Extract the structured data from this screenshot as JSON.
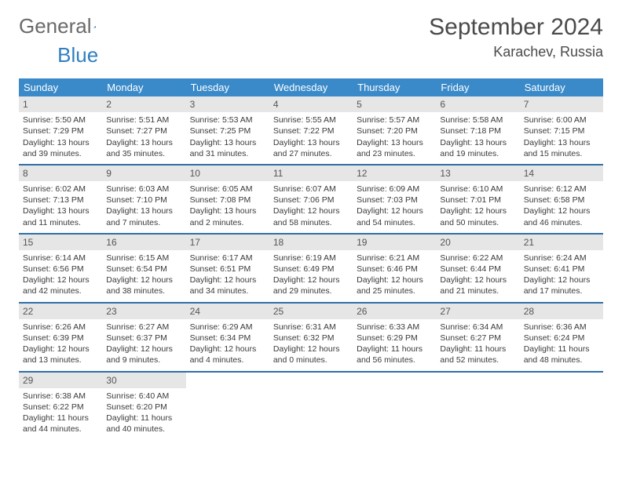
{
  "logo": {
    "text1": "General",
    "text2": "Blue"
  },
  "header": {
    "month_title": "September 2024",
    "location": "Karachev, Russia"
  },
  "colors": {
    "header_bg": "#3a8ac9",
    "header_text": "#ffffff",
    "week_border": "#2f6fa8",
    "daynum_bg": "#e6e6e6",
    "text": "#3a3a3a"
  },
  "weekdays": [
    "Sunday",
    "Monday",
    "Tuesday",
    "Wednesday",
    "Thursday",
    "Friday",
    "Saturday"
  ],
  "weeks": [
    [
      {
        "n": "1",
        "sr": "Sunrise: 5:50 AM",
        "ss": "Sunset: 7:29 PM",
        "d1": "Daylight: 13 hours",
        "d2": "and 39 minutes."
      },
      {
        "n": "2",
        "sr": "Sunrise: 5:51 AM",
        "ss": "Sunset: 7:27 PM",
        "d1": "Daylight: 13 hours",
        "d2": "and 35 minutes."
      },
      {
        "n": "3",
        "sr": "Sunrise: 5:53 AM",
        "ss": "Sunset: 7:25 PM",
        "d1": "Daylight: 13 hours",
        "d2": "and 31 minutes."
      },
      {
        "n": "4",
        "sr": "Sunrise: 5:55 AM",
        "ss": "Sunset: 7:22 PM",
        "d1": "Daylight: 13 hours",
        "d2": "and 27 minutes."
      },
      {
        "n": "5",
        "sr": "Sunrise: 5:57 AM",
        "ss": "Sunset: 7:20 PM",
        "d1": "Daylight: 13 hours",
        "d2": "and 23 minutes."
      },
      {
        "n": "6",
        "sr": "Sunrise: 5:58 AM",
        "ss": "Sunset: 7:18 PM",
        "d1": "Daylight: 13 hours",
        "d2": "and 19 minutes."
      },
      {
        "n": "7",
        "sr": "Sunrise: 6:00 AM",
        "ss": "Sunset: 7:15 PM",
        "d1": "Daylight: 13 hours",
        "d2": "and 15 minutes."
      }
    ],
    [
      {
        "n": "8",
        "sr": "Sunrise: 6:02 AM",
        "ss": "Sunset: 7:13 PM",
        "d1": "Daylight: 13 hours",
        "d2": "and 11 minutes."
      },
      {
        "n": "9",
        "sr": "Sunrise: 6:03 AM",
        "ss": "Sunset: 7:10 PM",
        "d1": "Daylight: 13 hours",
        "d2": "and 7 minutes."
      },
      {
        "n": "10",
        "sr": "Sunrise: 6:05 AM",
        "ss": "Sunset: 7:08 PM",
        "d1": "Daylight: 13 hours",
        "d2": "and 2 minutes."
      },
      {
        "n": "11",
        "sr": "Sunrise: 6:07 AM",
        "ss": "Sunset: 7:06 PM",
        "d1": "Daylight: 12 hours",
        "d2": "and 58 minutes."
      },
      {
        "n": "12",
        "sr": "Sunrise: 6:09 AM",
        "ss": "Sunset: 7:03 PM",
        "d1": "Daylight: 12 hours",
        "d2": "and 54 minutes."
      },
      {
        "n": "13",
        "sr": "Sunrise: 6:10 AM",
        "ss": "Sunset: 7:01 PM",
        "d1": "Daylight: 12 hours",
        "d2": "and 50 minutes."
      },
      {
        "n": "14",
        "sr": "Sunrise: 6:12 AM",
        "ss": "Sunset: 6:58 PM",
        "d1": "Daylight: 12 hours",
        "d2": "and 46 minutes."
      }
    ],
    [
      {
        "n": "15",
        "sr": "Sunrise: 6:14 AM",
        "ss": "Sunset: 6:56 PM",
        "d1": "Daylight: 12 hours",
        "d2": "and 42 minutes."
      },
      {
        "n": "16",
        "sr": "Sunrise: 6:15 AM",
        "ss": "Sunset: 6:54 PM",
        "d1": "Daylight: 12 hours",
        "d2": "and 38 minutes."
      },
      {
        "n": "17",
        "sr": "Sunrise: 6:17 AM",
        "ss": "Sunset: 6:51 PM",
        "d1": "Daylight: 12 hours",
        "d2": "and 34 minutes."
      },
      {
        "n": "18",
        "sr": "Sunrise: 6:19 AM",
        "ss": "Sunset: 6:49 PM",
        "d1": "Daylight: 12 hours",
        "d2": "and 29 minutes."
      },
      {
        "n": "19",
        "sr": "Sunrise: 6:21 AM",
        "ss": "Sunset: 6:46 PM",
        "d1": "Daylight: 12 hours",
        "d2": "and 25 minutes."
      },
      {
        "n": "20",
        "sr": "Sunrise: 6:22 AM",
        "ss": "Sunset: 6:44 PM",
        "d1": "Daylight: 12 hours",
        "d2": "and 21 minutes."
      },
      {
        "n": "21",
        "sr": "Sunrise: 6:24 AM",
        "ss": "Sunset: 6:41 PM",
        "d1": "Daylight: 12 hours",
        "d2": "and 17 minutes."
      }
    ],
    [
      {
        "n": "22",
        "sr": "Sunrise: 6:26 AM",
        "ss": "Sunset: 6:39 PM",
        "d1": "Daylight: 12 hours",
        "d2": "and 13 minutes."
      },
      {
        "n": "23",
        "sr": "Sunrise: 6:27 AM",
        "ss": "Sunset: 6:37 PM",
        "d1": "Daylight: 12 hours",
        "d2": "and 9 minutes."
      },
      {
        "n": "24",
        "sr": "Sunrise: 6:29 AM",
        "ss": "Sunset: 6:34 PM",
        "d1": "Daylight: 12 hours",
        "d2": "and 4 minutes."
      },
      {
        "n": "25",
        "sr": "Sunrise: 6:31 AM",
        "ss": "Sunset: 6:32 PM",
        "d1": "Daylight: 12 hours",
        "d2": "and 0 minutes."
      },
      {
        "n": "26",
        "sr": "Sunrise: 6:33 AM",
        "ss": "Sunset: 6:29 PM",
        "d1": "Daylight: 11 hours",
        "d2": "and 56 minutes."
      },
      {
        "n": "27",
        "sr": "Sunrise: 6:34 AM",
        "ss": "Sunset: 6:27 PM",
        "d1": "Daylight: 11 hours",
        "d2": "and 52 minutes."
      },
      {
        "n": "28",
        "sr": "Sunrise: 6:36 AM",
        "ss": "Sunset: 6:24 PM",
        "d1": "Daylight: 11 hours",
        "d2": "and 48 minutes."
      }
    ],
    [
      {
        "n": "29",
        "sr": "Sunrise: 6:38 AM",
        "ss": "Sunset: 6:22 PM",
        "d1": "Daylight: 11 hours",
        "d2": "and 44 minutes."
      },
      {
        "n": "30",
        "sr": "Sunrise: 6:40 AM",
        "ss": "Sunset: 6:20 PM",
        "d1": "Daylight: 11 hours",
        "d2": "and 40 minutes."
      },
      null,
      null,
      null,
      null,
      null
    ]
  ]
}
